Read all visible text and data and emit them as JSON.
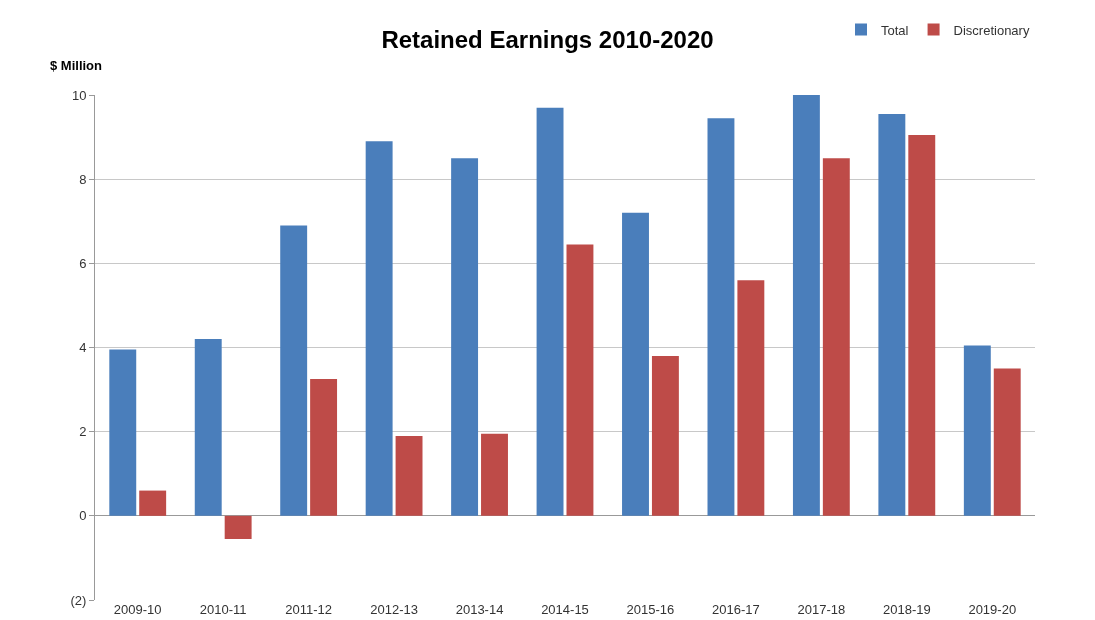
{
  "chart_data": {
    "type": "bar",
    "title": "Retained Earnings 2010-2020",
    "ylabel": "$ Million",
    "categories": [
      "2009-10",
      "2010-11",
      "2011-12",
      "2012-13",
      "2013-14",
      "2014-15",
      "2015-16",
      "2016-17",
      "2017-18",
      "2018-19",
      "2019-20"
    ],
    "series": [
      {
        "name": "Total",
        "color": "#4a7ebb",
        "values": [
          3.95,
          4.2,
          6.9,
          8.9,
          8.5,
          9.7,
          7.2,
          9.45,
          10,
          9.55,
          4.05
        ]
      },
      {
        "name": "Discretionary",
        "color": "#be4b48",
        "values": [
          0.6,
          -0.55,
          3.25,
          1.9,
          1.95,
          6.45,
          3.8,
          5.6,
          8.5,
          9.05,
          3.5
        ]
      }
    ],
    "ylim": [
      -2,
      10
    ],
    "yticks": [
      {
        "value": -2,
        "label": "(2)"
      },
      0,
      2,
      4,
      6,
      8,
      10
    ],
    "grid": "y",
    "legend": "top right"
  }
}
